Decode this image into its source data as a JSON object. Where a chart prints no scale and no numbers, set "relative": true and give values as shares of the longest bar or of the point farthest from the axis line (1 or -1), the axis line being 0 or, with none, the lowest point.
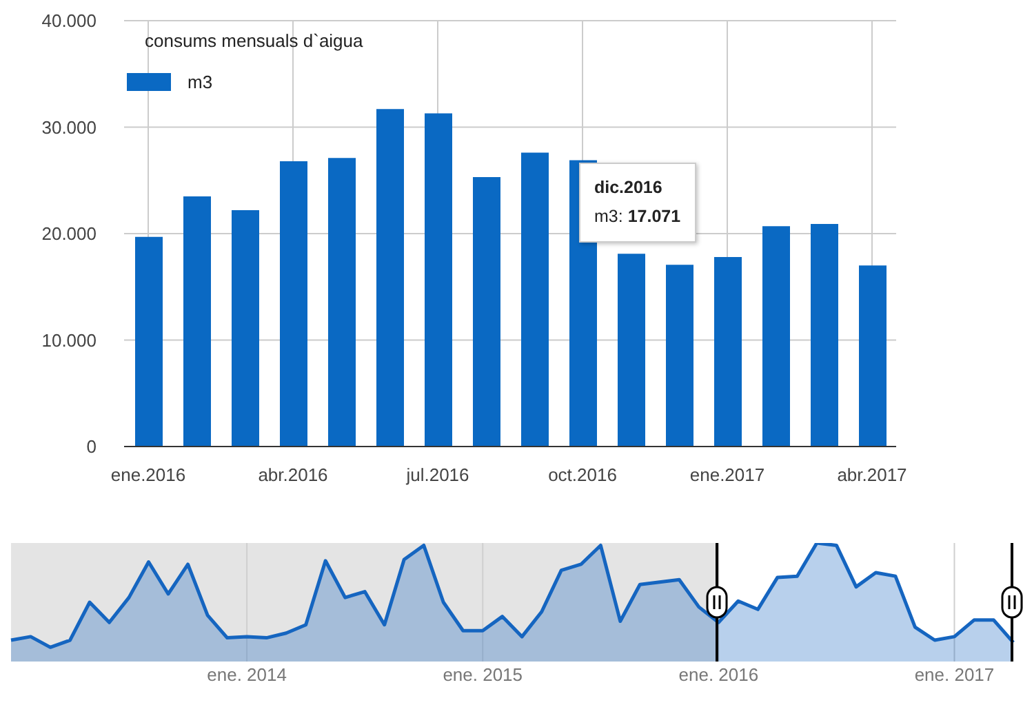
{
  "chart_data": [
    {
      "type": "bar",
      "title": "consums mensuals d`aigua",
      "categories": [
        "ene.2016",
        null,
        null,
        "abr.2016",
        null,
        null,
        "jul.2016",
        null,
        null,
        "oct.2016",
        null,
        null,
        "ene.2017",
        null,
        null,
        "abr.2017"
      ],
      "series": [
        {
          "name": "m3",
          "color": "#0a69c3",
          "values": [
            19700,
            23500,
            22200,
            26800,
            27100,
            31700,
            31300,
            25300,
            27600,
            26900,
            18100,
            17071,
            17800,
            20700,
            20900,
            17000
          ]
        }
      ],
      "ylim": [
        0,
        40000
      ],
      "yticks": [
        {
          "value": 0,
          "label": "0"
        },
        {
          "value": 10000,
          "label": "10.000"
        },
        {
          "value": 20000,
          "label": "20.000"
        },
        {
          "value": 30000,
          "label": "30.000"
        },
        {
          "value": 40000,
          "label": "40.000"
        }
      ],
      "grid": true,
      "legend": "top left",
      "annotations": [
        "dic.2016\nm3: 17.071"
      ]
    },
    {
      "type": "area",
      "relative": true,
      "color": "#1565c0",
      "grid": "x",
      "categories": [
        null,
        null,
        null,
        null,
        null,
        null,
        null,
        null,
        null,
        null,
        null,
        null,
        "ene. 2014",
        null,
        null,
        null,
        null,
        null,
        null,
        null,
        null,
        null,
        null,
        null,
        "ene. 2015",
        null,
        null,
        null,
        null,
        null,
        null,
        null,
        null,
        null,
        null,
        null,
        "ene. 2016",
        null,
        null,
        null,
        null,
        null,
        null,
        null,
        null,
        null,
        null,
        null,
        "ene. 2017",
        null,
        null,
        null
      ],
      "values": [
        0.18,
        0.21,
        0.12,
        0.18,
        0.5,
        0.33,
        0.54,
        0.84,
        0.57,
        0.82,
        0.39,
        0.2,
        0.21,
        0.2,
        0.24,
        0.31,
        0.85,
        0.54,
        0.59,
        0.31,
        0.86,
        0.98,
        0.5,
        0.26,
        0.26,
        0.38,
        0.21,
        0.42,
        0.77,
        0.82,
        0.98,
        0.34,
        0.65,
        0.67,
        0.69,
        0.46,
        0.33,
        0.51,
        0.44,
        0.71,
        0.72,
        1,
        0.98,
        0.63,
        0.75,
        0.72,
        0.29,
        0.18,
        0.21,
        0.35,
        0.35,
        0.16
      ]
    }
  ]
}
